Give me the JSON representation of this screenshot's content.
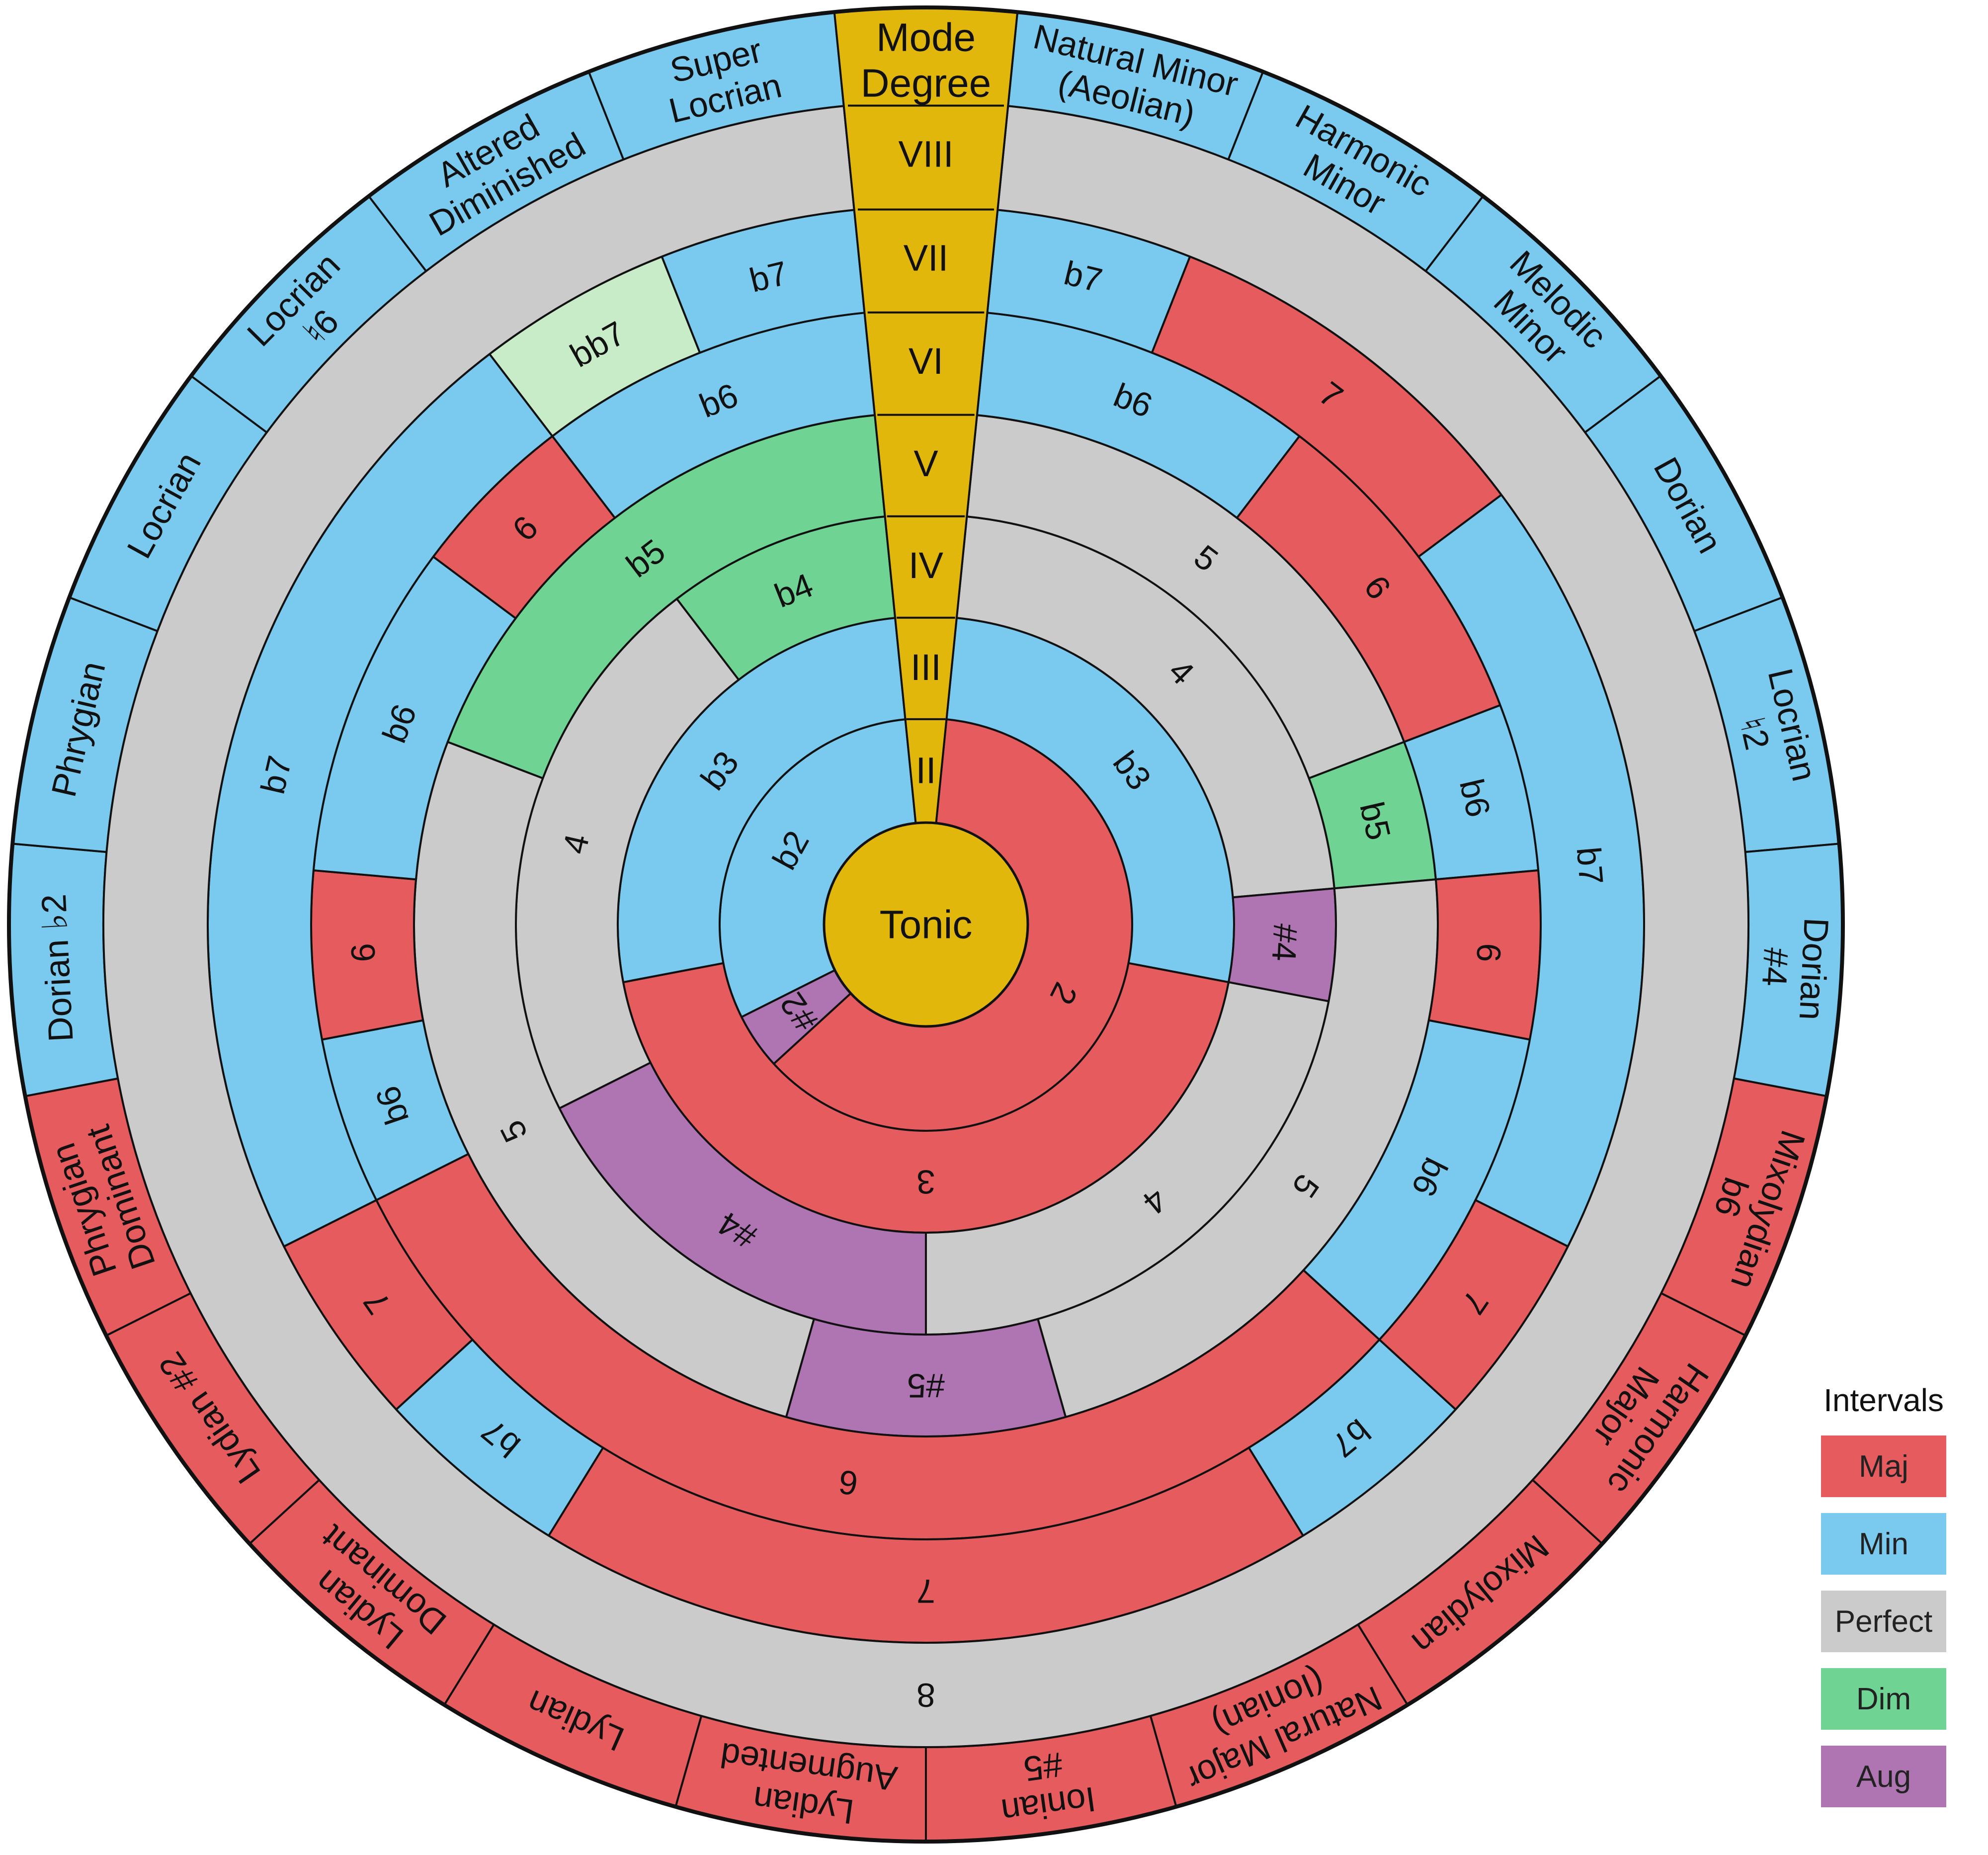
{
  "colors": {
    "maj": "#E55B5E",
    "min": "#7AC9EE",
    "perfect": "#CBCBCB",
    "dim": "#6FD493",
    "aug": "#AF75B3",
    "dim2": "#C8EBC8",
    "degree": "#E2B70C"
  },
  "center_label": "Tonic",
  "degree_column": {
    "title": [
      "Mode",
      "Degree"
    ],
    "numerals": [
      "II",
      "III",
      "IV",
      "V",
      "VI",
      "VII",
      "VIII"
    ]
  },
  "modes": [
    {
      "name": [
        "Natural Minor",
        "(Aeolian)"
      ],
      "family": "min",
      "intervals": [
        [
          "2",
          "maj"
        ],
        [
          "b3",
          "min"
        ],
        [
          "4",
          "perfect"
        ],
        [
          "5",
          "perfect"
        ],
        [
          "b6",
          "min"
        ],
        [
          "b7",
          "min"
        ],
        [
          "8",
          "perfect"
        ]
      ]
    },
    {
      "name": [
        "Harmonic",
        "Minor"
      ],
      "family": "min",
      "intervals": [
        [
          "2",
          "maj"
        ],
        [
          "b3",
          "min"
        ],
        [
          "4",
          "perfect"
        ],
        [
          "5",
          "perfect"
        ],
        [
          "b6",
          "min"
        ],
        [
          "7",
          "maj"
        ],
        [
          "8",
          "perfect"
        ]
      ]
    },
    {
      "name": [
        "Melodic",
        "Minor"
      ],
      "family": "min",
      "intervals": [
        [
          "2",
          "maj"
        ],
        [
          "b3",
          "min"
        ],
        [
          "4",
          "perfect"
        ],
        [
          "5",
          "perfect"
        ],
        [
          "6",
          "maj"
        ],
        [
          "7",
          "maj"
        ],
        [
          "8",
          "perfect"
        ]
      ]
    },
    {
      "name": [
        "Dorian"
      ],
      "family": "min",
      "intervals": [
        [
          "2",
          "maj"
        ],
        [
          "b3",
          "min"
        ],
        [
          "4",
          "perfect"
        ],
        [
          "5",
          "perfect"
        ],
        [
          "6",
          "maj"
        ],
        [
          "b7",
          "min"
        ],
        [
          "8",
          "perfect"
        ]
      ]
    },
    {
      "name": [
        "Locrian",
        "♮2"
      ],
      "family": "min",
      "intervals": [
        [
          "2",
          "maj"
        ],
        [
          "b3",
          "min"
        ],
        [
          "4",
          "perfect"
        ],
        [
          "b5",
          "dim"
        ],
        [
          "b6",
          "min"
        ],
        [
          "b7",
          "min"
        ],
        [
          "8",
          "perfect"
        ]
      ]
    },
    {
      "name": [
        "Dorian",
        "#4"
      ],
      "family": "min",
      "intervals": [
        [
          "2",
          "maj"
        ],
        [
          "b3",
          "min"
        ],
        [
          "#4",
          "aug"
        ],
        [
          "5",
          "perfect"
        ],
        [
          "6",
          "maj"
        ],
        [
          "b7",
          "min"
        ],
        [
          "8",
          "perfect"
        ]
      ]
    },
    {
      "name": [
        "Mixolydian",
        "b6"
      ],
      "family": "maj",
      "intervals": [
        [
          "2",
          "maj"
        ],
        [
          "3",
          "maj"
        ],
        [
          "4",
          "perfect"
        ],
        [
          "5",
          "perfect"
        ],
        [
          "b6",
          "min"
        ],
        [
          "b7",
          "min"
        ],
        [
          "8",
          "perfect"
        ]
      ]
    },
    {
      "name": [
        "Harmonic",
        "Major"
      ],
      "family": "maj",
      "intervals": [
        [
          "2",
          "maj"
        ],
        [
          "3",
          "maj"
        ],
        [
          "4",
          "perfect"
        ],
        [
          "5",
          "perfect"
        ],
        [
          "b6",
          "min"
        ],
        [
          "7",
          "maj"
        ],
        [
          "8",
          "perfect"
        ]
      ]
    },
    {
      "name": [
        "Mixolydian"
      ],
      "family": "maj",
      "intervals": [
        [
          "2",
          "maj"
        ],
        [
          "3",
          "maj"
        ],
        [
          "4",
          "perfect"
        ],
        [
          "5",
          "perfect"
        ],
        [
          "6",
          "maj"
        ],
        [
          "b7",
          "min"
        ],
        [
          "8",
          "perfect"
        ]
      ]
    },
    {
      "name": [
        "Natural Major",
        "(Ionian)"
      ],
      "family": "maj",
      "intervals": [
        [
          "2",
          "maj"
        ],
        [
          "3",
          "maj"
        ],
        [
          "4",
          "perfect"
        ],
        [
          "5",
          "perfect"
        ],
        [
          "6",
          "maj"
        ],
        [
          "7",
          "maj"
        ],
        [
          "8",
          "perfect"
        ]
      ]
    },
    {
      "name": [
        "Ionian",
        "#5"
      ],
      "family": "maj",
      "intervals": [
        [
          "2",
          "maj"
        ],
        [
          "3",
          "maj"
        ],
        [
          "4",
          "perfect"
        ],
        [
          "#5",
          "aug"
        ],
        [
          "6",
          "maj"
        ],
        [
          "7",
          "maj"
        ],
        [
          "8",
          "perfect"
        ]
      ]
    },
    {
      "name": [
        "Lydian",
        "Augmented"
      ],
      "family": "maj",
      "intervals": [
        [
          "2",
          "maj"
        ],
        [
          "3",
          "maj"
        ],
        [
          "#4",
          "aug"
        ],
        [
          "#5",
          "aug"
        ],
        [
          "6",
          "maj"
        ],
        [
          "7",
          "maj"
        ],
        [
          "8",
          "perfect"
        ]
      ]
    },
    {
      "name": [
        "Lydian"
      ],
      "family": "maj",
      "intervals": [
        [
          "2",
          "maj"
        ],
        [
          "3",
          "maj"
        ],
        [
          "#4",
          "aug"
        ],
        [
          "5",
          "perfect"
        ],
        [
          "6",
          "maj"
        ],
        [
          "7",
          "maj"
        ],
        [
          "8",
          "perfect"
        ]
      ]
    },
    {
      "name": [
        "Lydian",
        "Dominant"
      ],
      "family": "maj",
      "intervals": [
        [
          "2",
          "maj"
        ],
        [
          "3",
          "maj"
        ],
        [
          "#4",
          "aug"
        ],
        [
          "5",
          "perfect"
        ],
        [
          "6",
          "maj"
        ],
        [
          "b7",
          "min"
        ],
        [
          "8",
          "perfect"
        ]
      ]
    },
    {
      "name": [
        "Lydian #2"
      ],
      "family": "maj",
      "intervals": [
        [
          "#2",
          "aug"
        ],
        [
          "3",
          "maj"
        ],
        [
          "#4",
          "aug"
        ],
        [
          "5",
          "perfect"
        ],
        [
          "6",
          "maj"
        ],
        [
          "7",
          "maj"
        ],
        [
          "8",
          "perfect"
        ]
      ]
    },
    {
      "name": [
        "Phrygian",
        "Dominant"
      ],
      "family": "maj",
      "intervals": [
        [
          "b2",
          "min"
        ],
        [
          "3",
          "maj"
        ],
        [
          "4",
          "perfect"
        ],
        [
          "5",
          "perfect"
        ],
        [
          "b6",
          "min"
        ],
        [
          "b7",
          "min"
        ],
        [
          "8",
          "perfect"
        ]
      ]
    },
    {
      "name": [
        "Dorian ♭2"
      ],
      "family": "min",
      "intervals": [
        [
          "b2",
          "min"
        ],
        [
          "b3",
          "min"
        ],
        [
          "4",
          "perfect"
        ],
        [
          "5",
          "perfect"
        ],
        [
          "6",
          "maj"
        ],
        [
          "b7",
          "min"
        ],
        [
          "8",
          "perfect"
        ]
      ]
    },
    {
      "name": [
        "Phrygian"
      ],
      "family": "min",
      "intervals": [
        [
          "b2",
          "min"
        ],
        [
          "b3",
          "min"
        ],
        [
          "4",
          "perfect"
        ],
        [
          "5",
          "perfect"
        ],
        [
          "b6",
          "min"
        ],
        [
          "b7",
          "min"
        ],
        [
          "8",
          "perfect"
        ]
      ]
    },
    {
      "name": [
        "Locrian"
      ],
      "family": "min",
      "intervals": [
        [
          "b2",
          "min"
        ],
        [
          "b3",
          "min"
        ],
        [
          "4",
          "perfect"
        ],
        [
          "b5",
          "dim"
        ],
        [
          "b6",
          "min"
        ],
        [
          "b7",
          "min"
        ],
        [
          "8",
          "perfect"
        ]
      ]
    },
    {
      "name": [
        "Locrian",
        "♮6"
      ],
      "family": "min",
      "intervals": [
        [
          "b2",
          "min"
        ],
        [
          "b3",
          "min"
        ],
        [
          "4",
          "perfect"
        ],
        [
          "b5",
          "dim"
        ],
        [
          "6",
          "maj"
        ],
        [
          "b7",
          "min"
        ],
        [
          "8",
          "perfect"
        ]
      ]
    },
    {
      "name": [
        "Altered",
        "Diminished"
      ],
      "family": "min",
      "intervals": [
        [
          "b2",
          "min"
        ],
        [
          "b3",
          "min"
        ],
        [
          "b4",
          "dim"
        ],
        [
          "b5",
          "dim"
        ],
        [
          "b6",
          "min"
        ],
        [
          "bb7",
          "dim2"
        ],
        [
          "8",
          "perfect"
        ]
      ]
    },
    {
      "name": [
        "Super",
        "Locrian"
      ],
      "family": "min",
      "intervals": [
        [
          "b2",
          "min"
        ],
        [
          "b3",
          "min"
        ],
        [
          "b4",
          "dim"
        ],
        [
          "b5",
          "dim"
        ],
        [
          "b6",
          "min"
        ],
        [
          "b7",
          "min"
        ],
        [
          "8",
          "perfect"
        ]
      ]
    }
  ],
  "legend": {
    "title": "Intervals",
    "items": [
      {
        "label": "Maj",
        "key": "maj"
      },
      {
        "label": "Min",
        "key": "min"
      },
      {
        "label": "Perfect",
        "key": "perfect"
      },
      {
        "label": "Dim",
        "key": "dim"
      },
      {
        "label": "Aug",
        "key": "aug"
      }
    ]
  }
}
